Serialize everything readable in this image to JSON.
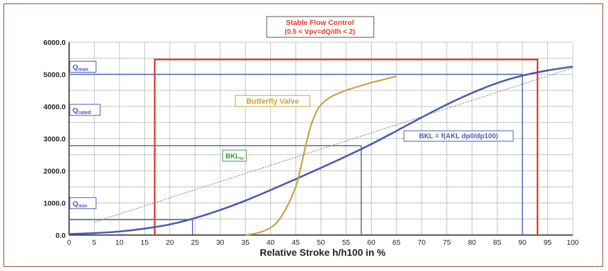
{
  "chart_data": {
    "type": "line",
    "xlabel": "Relative Stroke h/h100 in %",
    "ylabel": "",
    "xlim": [
      0,
      100
    ],
    "ylim": [
      0,
      6000
    ],
    "x_ticks": [
      "0",
      "5",
      "10",
      "15",
      "20",
      "25",
      "30",
      "35",
      "40",
      "45",
      "50",
      "55",
      "60",
      "65",
      "70",
      "75",
      "80",
      "85",
      "90",
      "95",
      "100"
    ],
    "y_ticks": [
      "0.0",
      "1000.0",
      "2000.0",
      "3000.0",
      "4000.0",
      "5000.0",
      "6000.0"
    ],
    "grid": true,
    "series": [
      {
        "name": "BKL = f(AKL dp0/dp100)",
        "color": "#4a5ab0",
        "x": [
          0,
          5,
          10,
          15,
          20,
          25,
          30,
          35,
          40,
          45,
          50,
          55,
          60,
          65,
          70,
          75,
          80,
          85,
          90,
          95,
          100
        ],
        "y": [
          30,
          60,
          110,
          200,
          330,
          530,
          780,
          1070,
          1400,
          1740,
          2090,
          2450,
          2830,
          3240,
          3660,
          4060,
          4420,
          4730,
          4960,
          5120,
          5240
        ]
      },
      {
        "name": "Butterfly Valve",
        "color": "#c9a23a",
        "x": [
          35,
          37,
          39,
          41,
          43,
          45,
          46,
          47,
          48,
          49,
          50,
          52,
          55,
          58,
          61,
          65
        ],
        "y": [
          0,
          50,
          150,
          350,
          800,
          1500,
          2100,
          2800,
          3400,
          3800,
          4050,
          4300,
          4500,
          4650,
          4780,
          4940
        ]
      },
      {
        "name": "",
        "color": "#888888",
        "style": "dotted",
        "x": [
          5,
          100
        ],
        "y": [
          400,
          5200
        ]
      }
    ],
    "reference_lines": {
      "q_max": 5000,
      "q_rated": 2780,
      "q_min": 480,
      "stable_region": {
        "x_start": 17,
        "x_end": 93,
        "y_top": 5460
      },
      "drop_lines_x": [
        24.5,
        58,
        90
      ]
    },
    "annotations": {
      "title_line1": "Stable Flow Control",
      "title_line2": "(0.5 < Vpv=dQ/dh < 2)",
      "q_max_base": "Q",
      "q_max_sub": "max",
      "q_rated_base": "Q",
      "q_rated_sub": "rated",
      "q_min_base": "Q",
      "q_min_sub": "min",
      "butterfly_label": "Butterfly Valve",
      "bkl_label": "BKL = f(AKL dp0/dp100)",
      "bkl_tv_base": "BKL",
      "bkl_tv_sub": "tv"
    },
    "colors": {
      "stable_region": "#e83a2a",
      "reference": "#4a5ab0",
      "grid": "#c4c4c4"
    }
  }
}
